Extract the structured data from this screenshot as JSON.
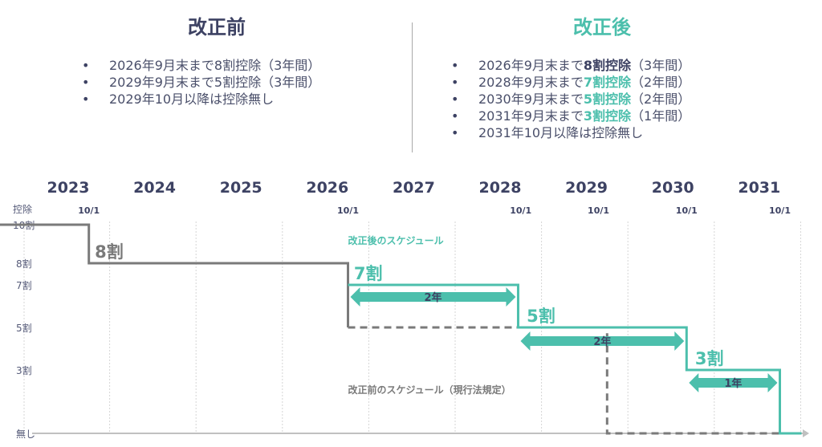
{
  "before": {
    "title": "改正前",
    "items": [
      {
        "pre": "2026年9月末まで8割控除（3年間）",
        "em": "",
        "post": ""
      },
      {
        "pre": "2029年9月末まで5割控除（3年間）",
        "em": "",
        "post": ""
      },
      {
        "pre": "2029年10月以降は控除無し",
        "em": "",
        "post": ""
      }
    ]
  },
  "after": {
    "title": "改正後",
    "items": [
      {
        "pre": "2026年9月末まで",
        "em": "8割控除",
        "post": "（3年間）",
        "color": "#3d4263"
      },
      {
        "pre": "2028年9月末まで",
        "em": "7割控除",
        "post": "（2年間）",
        "color": "#4cbfac"
      },
      {
        "pre": "2030年9月末まで",
        "em": "5割控除",
        "post": "（2年間）",
        "color": "#4cbfac"
      },
      {
        "pre": "2031年9月末まで",
        "em": "3割控除",
        "post": "（1年間）",
        "color": "#4cbfac"
      },
      {
        "pre": "2031年10月以降は控除無し",
        "em": "",
        "post": ""
      }
    ]
  },
  "chart_data": {
    "type": "line",
    "title": "",
    "ylabel": "控除",
    "years": [
      "2023",
      "2024",
      "2025",
      "2026",
      "2027",
      "2028",
      "2029",
      "2030",
      "2031"
    ],
    "y_ticks": [
      {
        "label": "10割",
        "v": 10
      },
      {
        "label": "8割",
        "v": 8
      },
      {
        "label": "7割",
        "v": 7
      },
      {
        "label": "5割",
        "v": 5
      },
      {
        "label": "3割",
        "v": 3
      },
      {
        "label": "無し",
        "v": 0
      }
    ],
    "date_marks": [
      {
        "label": "10/1",
        "t": 2023.75
      },
      {
        "label": "10/1",
        "t": 2026.75
      },
      {
        "label": "10/1",
        "t": 2028.75
      },
      {
        "label": "10/1",
        "t": 2029.65
      },
      {
        "label": "10/1",
        "t": 2030.67
      },
      {
        "label": "10/1",
        "t": 2031.75
      }
    ],
    "series": [
      {
        "name": "改正前のスケジュール（現行法規定）",
        "color": "#7a7a7a",
        "steps": [
          [
            2022.5,
            10
          ],
          [
            2023.75,
            10
          ],
          [
            2023.75,
            8
          ],
          [
            2026.75,
            8
          ],
          [
            2026.75,
            5
          ],
          [
            2029.75,
            5
          ],
          [
            2029.75,
            0
          ],
          [
            2032.0,
            0
          ]
        ]
      },
      {
        "name": "改正後のスケジュール",
        "color": "#4cbfac",
        "steps": [
          [
            2026.75,
            7
          ],
          [
            2028.72,
            7
          ],
          [
            2028.72,
            5
          ],
          [
            2030.67,
            5
          ],
          [
            2030.67,
            3
          ],
          [
            2031.75,
            3
          ],
          [
            2031.75,
            0
          ],
          [
            2032.0,
            0
          ]
        ]
      }
    ],
    "step_labels": [
      {
        "text": "8割",
        "t": 2023.8,
        "v": 8,
        "color": "#7a7a7a"
      },
      {
        "text": "7割",
        "t": 2026.8,
        "v": 7,
        "color": "#4cbfac"
      },
      {
        "text": "5割",
        "t": 2028.8,
        "v": 5,
        "color": "#4cbfac"
      },
      {
        "text": "3割",
        "t": 2030.75,
        "v": 3,
        "color": "#4cbfac"
      }
    ],
    "spans": [
      {
        "label": "2年",
        "from": 2026.75,
        "to": 2028.72,
        "v": 6.3
      },
      {
        "label": "2年",
        "from": 2028.72,
        "to": 2030.67,
        "v": 4.3
      },
      {
        "label": "1年",
        "from": 2030.67,
        "to": 2031.75,
        "v": 2.3
      }
    ],
    "legend_labels": [
      {
        "text": "改正後のスケジュール",
        "t": 2026.75,
        "v": 9.2,
        "color": "#4cbfac"
      },
      {
        "text": "改正前のスケジュール（現行法規定）",
        "t": 2026.75,
        "v": 1.6,
        "color": "#7a7a7a"
      }
    ]
  }
}
